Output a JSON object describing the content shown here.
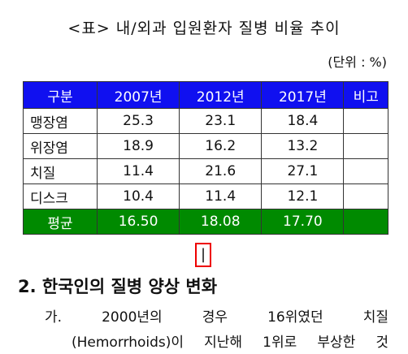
{
  "title": "<표> 내/외과 입원환자 질병 비율 추이",
  "unit": "(단위 : %)",
  "table": {
    "header": [
      "구분",
      "2007년",
      "2012년",
      "2017년",
      "비고"
    ],
    "rows": [
      [
        "맹장염",
        "25.3",
        "23.1",
        "18.4"
      ],
      [
        "위장염",
        "18.9",
        "16.2",
        "13.2"
      ],
      [
        "치질",
        "11.4",
        "21.6",
        "27.1"
      ],
      [
        "디스크",
        "10.4",
        "11.4",
        "12.1"
      ]
    ],
    "average": [
      "평균",
      "16.50",
      "18.08",
      "17.70"
    ]
  },
  "marker": "|",
  "section": {
    "heading": "2. 한국인의 질병 양상 변화",
    "lines": [
      "가. 2000년의 경우 16위였던 치질",
      "(Hemorrhoids)이 지난해 1위로 부상한 것"
    ]
  }
}
